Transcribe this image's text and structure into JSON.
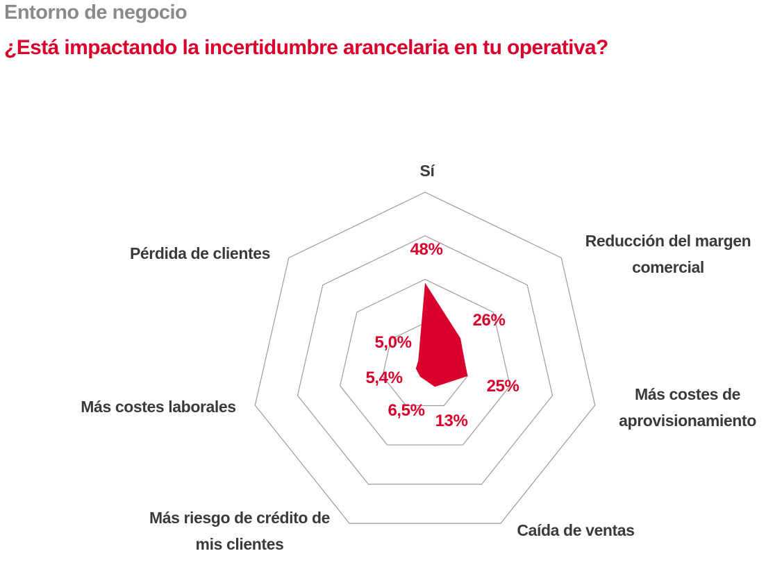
{
  "header": {
    "kicker": "Entorno de negocio",
    "title": "¿Está impactando la incertidumbre arancelaria en tu operativa?"
  },
  "chart_data": {
    "type": "radar",
    "title": "¿Está impactando la incertidumbre arancelaria en tu operativa?",
    "axes": [
      {
        "label": [
          "Sí"
        ],
        "value": 48,
        "value_label": "48%"
      },
      {
        "label": [
          "Reducción del margen",
          "comercial"
        ],
        "value": 26,
        "value_label": "26%"
      },
      {
        "label": [
          "Más costes de",
          "aprovisionamiento"
        ],
        "value": 25,
        "value_label": "25%"
      },
      {
        "label": [
          "Caída de ventas"
        ],
        "value": 13,
        "value_label": "13%"
      },
      {
        "label": [
          "Más riesgo de crédito de",
          "mis clientes"
        ],
        "value": 6.5,
        "value_label": "6,5%"
      },
      {
        "label": [
          "Más costes laborales"
        ],
        "value": 5.4,
        "value_label": "5,4%"
      },
      {
        "label": [
          "Pérdida de clientes"
        ],
        "value": 5.0,
        "value_label": "5,0%"
      }
    ],
    "range": [
      0,
      100
    ],
    "rings": [
      25,
      50,
      75,
      100
    ],
    "colors": {
      "series": "#d9002b",
      "grid": "#9a9a9a",
      "label": "#3a3a3a"
    }
  }
}
